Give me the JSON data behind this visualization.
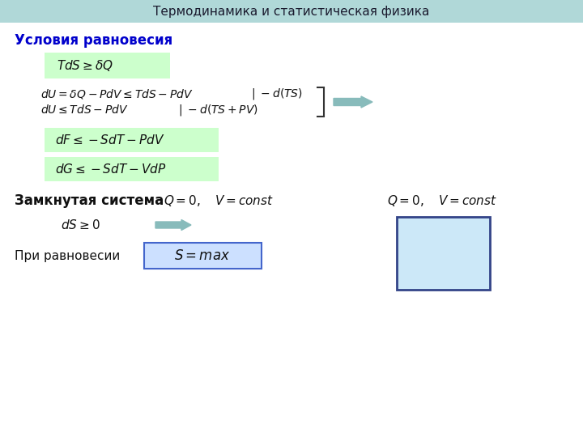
{
  "title": "Термодинамика и статистическая физика",
  "title_bg": "#b0d8d8",
  "bg_color": "#ffffff",
  "heading": "Условия равновесия",
  "heading_color": "#0000cc",
  "green_box_color": "#ccffcc",
  "blue_box_border": "#4466cc",
  "blue_box_fill": "#cce0ff",
  "arrow_fill": "#88bbbb",
  "arrow_edge": "#88bbbb",
  "text_color": "#111111",
  "bracket_color": "#333333",
  "rect_fill": "#cce8f8",
  "rect_edge": "#334488"
}
